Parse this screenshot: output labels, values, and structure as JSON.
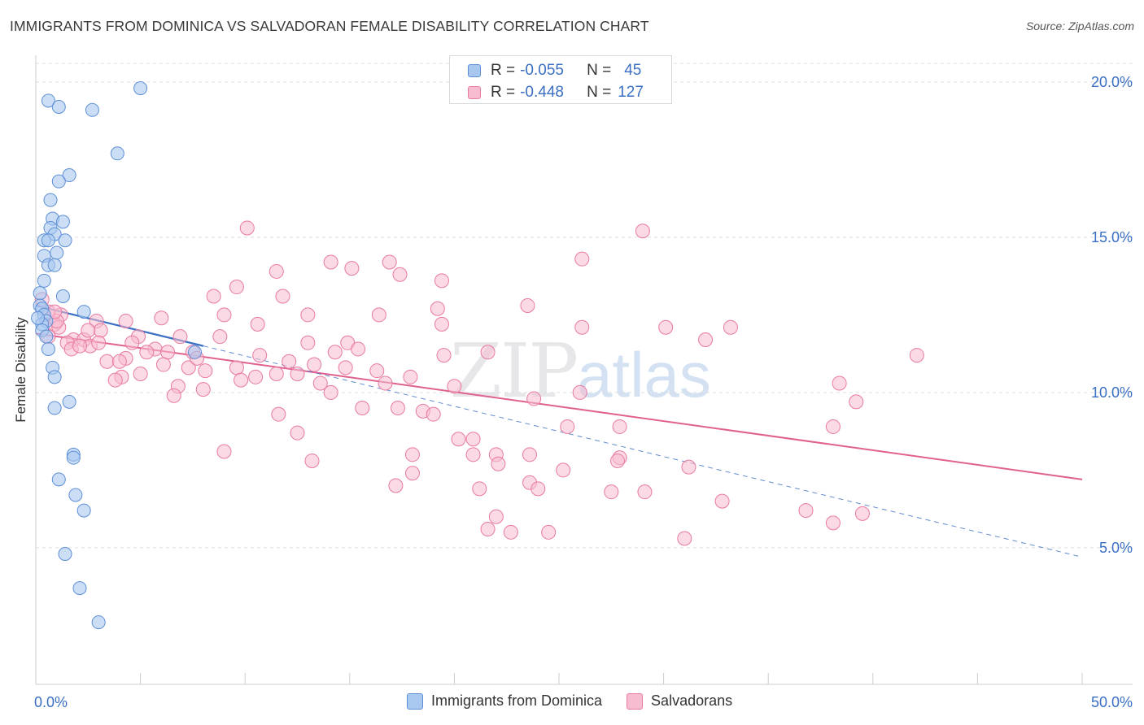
{
  "header": {
    "title": "IMMIGRANTS FROM DOMINICA VS SALVADORAN FEMALE DISABILITY CORRELATION CHART",
    "source": "Source: ZipAtlas.com"
  },
  "watermark": {
    "zip": "ZIP",
    "atlas": "atlas"
  },
  "colors": {
    "blue_fill": "#a9c8f0",
    "blue_stroke": "#5d8fd6",
    "blue_line": "#3a6fc4",
    "pink_fill": "#f7bcd0",
    "pink_stroke": "#e87aa0",
    "pink_line": "#e0608f",
    "grid": "#dddddd",
    "tick_label": "#3a6fc4"
  },
  "legend_top": {
    "series1": {
      "r_label": "R =",
      "r_value": "-0.055",
      "n_label": "N =",
      "n_value": "45"
    },
    "series2": {
      "r_label": "R =",
      "r_value": "-0.448",
      "n_label": "N =",
      "n_value": "127"
    }
  },
  "legend_bottom": {
    "series1": "Immigrants from Dominica",
    "series2": "Salvadorans"
  },
  "chart_data": {
    "type": "scatter",
    "title": "IMMIGRANTS FROM DOMINICA VS SALVADORAN FEMALE DISABILITY CORRELATION CHART",
    "xlabel": "",
    "ylabel": "Female Disability",
    "xlim": [
      0,
      50
    ],
    "ylim": [
      0.6,
      20.6
    ],
    "x_tick_labels": {
      "left": "0.0%",
      "right": "50.0%"
    },
    "y_ticks": [
      5,
      10,
      15,
      20
    ],
    "y_tick_labels": [
      "5.0%",
      "10.0%",
      "15.0%",
      "20.0%"
    ],
    "grid": true,
    "series": [
      {
        "name": "Immigrants from Dominica",
        "r": -0.055,
        "n": 45,
        "trend": {
          "x0": 0,
          "y0": 12.8,
          "x1": 8,
          "y1": 11.5
        },
        "trend_extension": {
          "x0": 8,
          "y0": 11.5,
          "x1": 50,
          "y1": 4.7
        },
        "points": [
          [
            5.0,
            19.8
          ],
          [
            0.6,
            19.4
          ],
          [
            1.1,
            19.2
          ],
          [
            2.7,
            19.1
          ],
          [
            3.9,
            17.7
          ],
          [
            1.6,
            17.0
          ],
          [
            1.1,
            16.8
          ],
          [
            0.7,
            16.2
          ],
          [
            0.8,
            15.6
          ],
          [
            1.3,
            15.5
          ],
          [
            0.7,
            15.3
          ],
          [
            0.9,
            15.1
          ],
          [
            0.4,
            14.9
          ],
          [
            0.6,
            14.9
          ],
          [
            1.4,
            14.9
          ],
          [
            0.4,
            14.4
          ],
          [
            1.0,
            14.5
          ],
          [
            0.6,
            14.1
          ],
          [
            0.9,
            14.1
          ],
          [
            0.4,
            13.6
          ],
          [
            1.3,
            13.1
          ],
          [
            0.2,
            13.2
          ],
          [
            0.2,
            12.8
          ],
          [
            0.3,
            12.7
          ],
          [
            2.3,
            12.6
          ],
          [
            0.4,
            12.5
          ],
          [
            0.5,
            12.3
          ],
          [
            0.3,
            12.2
          ],
          [
            0.3,
            12.0
          ],
          [
            0.5,
            11.8
          ],
          [
            0.6,
            11.4
          ],
          [
            7.6,
            11.3
          ],
          [
            0.8,
            10.8
          ],
          [
            0.9,
            10.5
          ],
          [
            1.6,
            9.7
          ],
          [
            0.9,
            9.5
          ],
          [
            1.8,
            8.0
          ],
          [
            1.8,
            7.9
          ],
          [
            1.1,
            7.2
          ],
          [
            1.9,
            6.7
          ],
          [
            2.3,
            6.2
          ],
          [
            1.4,
            4.8
          ],
          [
            2.1,
            3.7
          ],
          [
            3.0,
            2.6
          ],
          [
            0.1,
            12.4
          ]
        ]
      },
      {
        "name": "Salvadorans",
        "r": -0.448,
        "n": 127,
        "trend": {
          "x0": 0,
          "y0": 11.9,
          "x1": 50,
          "y1": 7.2
        },
        "points": [
          [
            10.1,
            15.3
          ],
          [
            29.0,
            15.2
          ],
          [
            14.1,
            14.2
          ],
          [
            16.9,
            14.2
          ],
          [
            26.1,
            14.3
          ],
          [
            11.5,
            13.9
          ],
          [
            15.1,
            14.0
          ],
          [
            17.4,
            13.8
          ],
          [
            19.4,
            13.6
          ],
          [
            9.6,
            13.4
          ],
          [
            8.5,
            13.1
          ],
          [
            11.8,
            13.1
          ],
          [
            19.2,
            12.7
          ],
          [
            23.5,
            12.8
          ],
          [
            0.3,
            13.0
          ],
          [
            0.6,
            12.6
          ],
          [
            1.2,
            12.5
          ],
          [
            6.0,
            12.4
          ],
          [
            9.0,
            12.5
          ],
          [
            13.0,
            12.5
          ],
          [
            16.4,
            12.5
          ],
          [
            2.9,
            12.3
          ],
          [
            4.3,
            12.3
          ],
          [
            10.6,
            12.2
          ],
          [
            19.4,
            12.2
          ],
          [
            26.1,
            12.1
          ],
          [
            30.1,
            12.1
          ],
          [
            33.2,
            12.1
          ],
          [
            0.9,
            12.2
          ],
          [
            1.1,
            12.1
          ],
          [
            3.1,
            12.0
          ],
          [
            6.9,
            11.8
          ],
          [
            4.9,
            11.8
          ],
          [
            1.8,
            11.7
          ],
          [
            2.3,
            11.7
          ],
          [
            2.6,
            11.5
          ],
          [
            1.5,
            11.6
          ],
          [
            1.7,
            11.4
          ],
          [
            2.1,
            11.5
          ],
          [
            5.7,
            11.4
          ],
          [
            8.8,
            11.8
          ],
          [
            13.0,
            11.6
          ],
          [
            14.9,
            11.6
          ],
          [
            15.4,
            11.4
          ],
          [
            32.0,
            11.7
          ],
          [
            42.1,
            11.2
          ],
          [
            5.3,
            11.3
          ],
          [
            6.3,
            11.3
          ],
          [
            7.5,
            11.3
          ],
          [
            10.7,
            11.2
          ],
          [
            12.1,
            11.0
          ],
          [
            14.3,
            11.3
          ],
          [
            19.5,
            11.2
          ],
          [
            21.6,
            11.3
          ],
          [
            7.3,
            10.8
          ],
          [
            4.3,
            11.1
          ],
          [
            3.4,
            11.0
          ],
          [
            4.0,
            11.0
          ],
          [
            6.1,
            10.9
          ],
          [
            8.1,
            10.7
          ],
          [
            9.6,
            10.8
          ],
          [
            10.5,
            10.5
          ],
          [
            13.3,
            10.9
          ],
          [
            14.8,
            10.8
          ],
          [
            16.3,
            10.7
          ],
          [
            17.9,
            10.5
          ],
          [
            4.1,
            10.5
          ],
          [
            5.0,
            10.6
          ],
          [
            3.8,
            10.4
          ],
          [
            12.5,
            10.6
          ],
          [
            13.6,
            10.3
          ],
          [
            16.7,
            10.3
          ],
          [
            11.5,
            10.6
          ],
          [
            9.8,
            10.4
          ],
          [
            20.0,
            10.2
          ],
          [
            26.0,
            10.0
          ],
          [
            38.4,
            10.3
          ],
          [
            6.8,
            10.2
          ],
          [
            8.0,
            10.1
          ],
          [
            6.6,
            9.9
          ],
          [
            14.1,
            10.0
          ],
          [
            23.8,
            9.8
          ],
          [
            39.2,
            9.7
          ],
          [
            15.6,
            9.5
          ],
          [
            17.3,
            9.5
          ],
          [
            11.6,
            9.3
          ],
          [
            18.5,
            9.4
          ],
          [
            19.0,
            9.3
          ],
          [
            25.4,
            8.9
          ],
          [
            27.9,
            8.9
          ],
          [
            38.1,
            8.9
          ],
          [
            12.5,
            8.7
          ],
          [
            20.2,
            8.5
          ],
          [
            20.9,
            8.5
          ],
          [
            18.0,
            8.0
          ],
          [
            20.9,
            8.0
          ],
          [
            22.0,
            8.0
          ],
          [
            23.6,
            8.0
          ],
          [
            9.0,
            8.1
          ],
          [
            13.2,
            7.8
          ],
          [
            22.1,
            7.7
          ],
          [
            27.9,
            7.9
          ],
          [
            27.8,
            7.8
          ],
          [
            31.2,
            7.6
          ],
          [
            18.0,
            7.4
          ],
          [
            25.2,
            7.5
          ],
          [
            17.2,
            7.0
          ],
          [
            21.2,
            6.9
          ],
          [
            23.6,
            7.1
          ],
          [
            24.0,
            6.9
          ],
          [
            27.5,
            6.8
          ],
          [
            29.1,
            6.8
          ],
          [
            32.8,
            6.5
          ],
          [
            36.8,
            6.2
          ],
          [
            38.1,
            5.8
          ],
          [
            39.5,
            6.1
          ],
          [
            22.7,
            5.5
          ],
          [
            24.5,
            5.5
          ],
          [
            31.0,
            5.3
          ],
          [
            21.6,
            5.6
          ],
          [
            22.0,
            6.0
          ],
          [
            2.5,
            12.0
          ],
          [
            3.0,
            11.6
          ],
          [
            7.7,
            11.1
          ],
          [
            0.6,
            11.8
          ],
          [
            1.0,
            12.3
          ],
          [
            4.6,
            11.6
          ],
          [
            0.9,
            12.6
          ]
        ]
      }
    ]
  }
}
